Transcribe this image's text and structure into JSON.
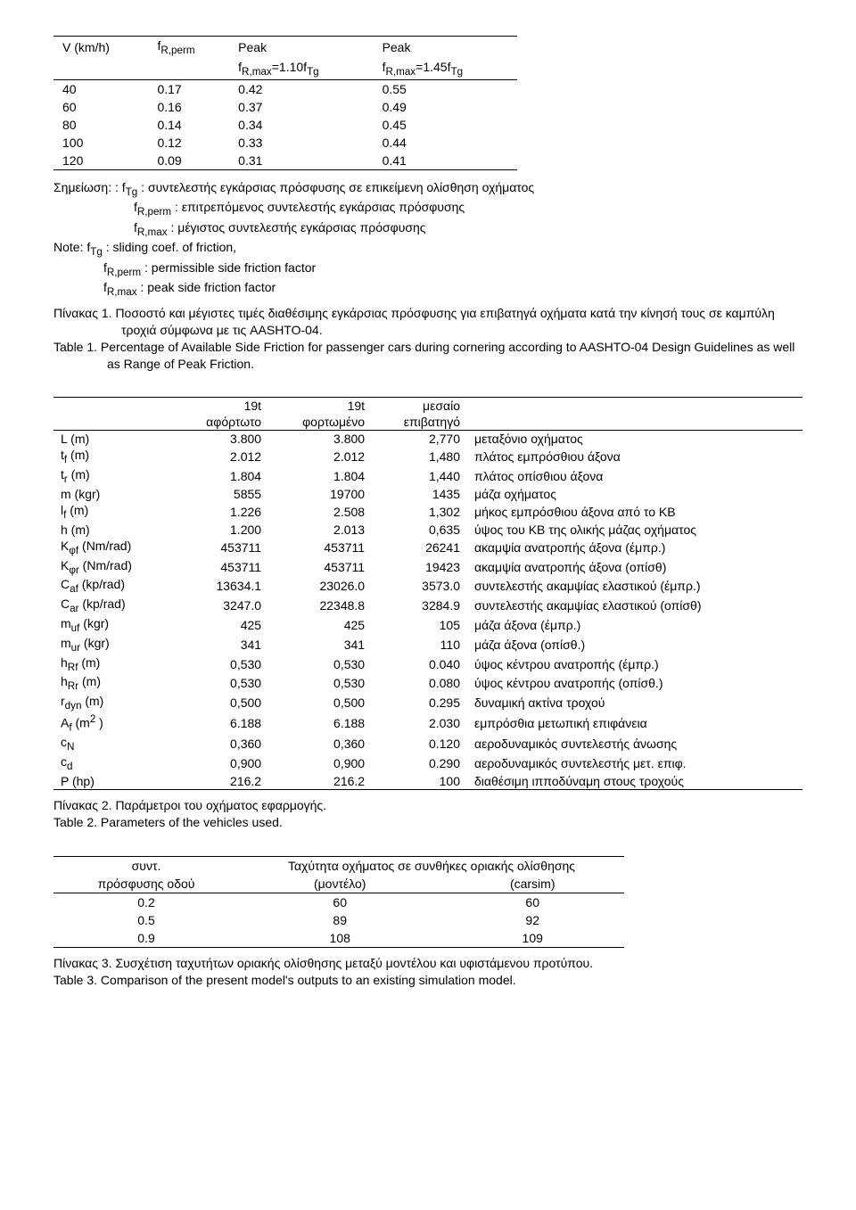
{
  "table1": {
    "headers": {
      "c0": "V (km/h)",
      "c1_html": "f<sub>R,perm</sub>",
      "c2": "Peak",
      "c2b_html": "f<sub>R,max</sub>=1.10f<sub>Tg</sub>",
      "c3": "Peak",
      "c3b_html": "f<sub>R,max</sub>=1.45f<sub>Tg</sub>"
    },
    "rows": [
      [
        "40",
        "0.17",
        "0.42",
        "0.55"
      ],
      [
        "60",
        "0.16",
        "0.37",
        "0.49"
      ],
      [
        "80",
        "0.14",
        "0.34",
        "0.45"
      ],
      [
        "100",
        "0.12",
        "0.33",
        "0.44"
      ],
      [
        "120",
        "0.09",
        "0.31",
        "0.41"
      ]
    ]
  },
  "notes": {
    "l1_html": "Σημείωση: :  f<sub>Tg</sub> : συντελεστής εγκάρσιας πρόσφυσης σε επικείμενη ολίσθηση οχήματος",
    "l2_html": "f<sub>R,perm</sub> : επιτρεπόμενος συντελεστής εγκάρσιας πρόσφυσης",
    "l3_html": "f<sub>R,max</sub> : μέγιστος  συντελεστής εγκάρσιας πρόσφυσης",
    "l4_html": "Note:   f<sub>Tg</sub> : sliding coef. of friction,",
    "l5_html": "f<sub>R,perm</sub> : permissible side friction factor",
    "l6_html": "f<sub>R,max</sub> : peak side friction factor"
  },
  "caption1": {
    "gr": "Πίνακας 1. Ποσοστό και μέγιστες τιμές διαθέσιμης εγκάρσιας πρόσφυσης για επιβατηγά οχήματα κατά την κίνησή τους σε καμπύλη τροχιά σύμφωνα με τις AASHTO-04.",
    "en": "Table 1. Percentage of Available Side Friction for passenger cars during cornering according to AASHTO-04 Design Guidelines as well as Range of Peak Friction."
  },
  "table2": {
    "head": {
      "h0": "",
      "h1a": "19t",
      "h1b": "αφόρτωτο",
      "h2a": "19t",
      "h2b": "φορτωμένο",
      "h3a": "μεσαίο",
      "h3b": "επιβατηγό",
      "h4": ""
    },
    "rows": [
      {
        "l_html": "L (m)",
        "a": "3.800",
        "b": "3.800",
        "c": "2,770",
        "d": "μεταξόνιο οχήματος"
      },
      {
        "l_html": "t<sub>f</sub> (m)",
        "a": "2.012",
        "b": "2.012",
        "c": "1,480",
        "d": "πλάτος εμπρόσθιου άξονα"
      },
      {
        "l_html": "t<sub>r</sub> (m)",
        "a": "1.804",
        "b": "1.804",
        "c": "1,440",
        "d": "πλάτος οπίσθιου άξονα"
      },
      {
        "l_html": "m (kgr)",
        "a": "5855",
        "b": "19700",
        "c": "1435",
        "d": "μάζα οχήματος"
      },
      {
        "l_html": "l<sub>f</sub> (m)",
        "a": "1.226",
        "b": "2.508",
        "c": "1,302",
        "d": "μήκος εμπρόσθιου άξονα από το ΚΒ"
      },
      {
        "l_html": "h (m)",
        "a": "1.200",
        "b": "2.013",
        "c": "0,635",
        "d": "ύψος του ΚΒ της ολικής μάζας οχήματος"
      },
      {
        "l_html": "K<sub>φf</sub> (Nm/rad)",
        "a": "453711",
        "b": "453711",
        "c": "26241",
        "d": "ακαμψία ανατροπής άξονα (έμπρ.)"
      },
      {
        "l_html": "K<sub>φr</sub> (Nm/rad)",
        "a": "453711",
        "b": "453711",
        "c": "19423",
        "d": "ακαμψία ανατροπής άξονα (οπίσθ)"
      },
      {
        "l_html": "C<sub>af</sub> (kp/rad)",
        "a": "13634.1",
        "b": "23026.0",
        "c": "3573.0",
        "d": "συντελεστής ακαμψίας ελαστικού (έμπρ.)"
      },
      {
        "l_html": "C<sub>ar</sub> (kp/rad)",
        "a": "3247.0",
        "b": "22348.8",
        "c": "3284.9",
        "d": "συντελεστής ακαμψίας ελαστικού (οπίσθ)"
      },
      {
        "l_html": "m<sub>uf</sub> (kgr)",
        "a": "425",
        "b": "425",
        "c": "105",
        "d": "μάζα άξονα (έμπρ.)"
      },
      {
        "l_html": "m<sub>ur</sub> (kgr)",
        "a": "341",
        "b": "341",
        "c": "110",
        "d": "μάζα άξονα (οπίσθ.)"
      },
      {
        "l_html": "h<sub>Rf</sub> (m)",
        "a": "0,530",
        "b": "0,530",
        "c": "0.040",
        "d": "ύψος κέντρου ανατροπής (έμπρ.)"
      },
      {
        "l_html": "h<sub>Rr</sub> (m)",
        "a": "0,530",
        "b": "0,530",
        "c": "0.080",
        "d": "ύψος κέντρου ανατροπής (οπίσθ.)"
      },
      {
        "l_html": "r<sub>dyn</sub> (m)",
        "a": "0,500",
        "b": "0,500",
        "c": "0.295",
        "d": "δυναμική ακτίνα τροχού"
      },
      {
        "l_html": "A<sub>f</sub> (m<sup>2</sup> )",
        "a": "6.188",
        "b": "6.188",
        "c": "2.030",
        "d": "εμπρόσθια μετωπική επιφάνεια"
      },
      {
        "l_html": "c<sub>N</sub>",
        "a": "0,360",
        "b": "0,360",
        "c": "0.120",
        "d": "αεροδυναμικός συντελεστής άνωσης"
      },
      {
        "l_html": "c<sub>d</sub>",
        "a": "0,900",
        "b": "0,900",
        "c": "0.290",
        "d": "αεροδυναμικός συντελεστής μετ. επιφ."
      },
      {
        "l_html": "P (hp)",
        "a": "216.2",
        "b": "216.2",
        "c": "100",
        "d": "διαθέσιμη ιπποδύναμη στους τροχούς"
      }
    ]
  },
  "caption2": {
    "gr": "Πίνακας 2. Παράμετροι του οχήματος εφαρμογής.",
    "en": "Table 2. Parameters of the vehicles used."
  },
  "table3": {
    "head": {
      "h1a": "συντ.",
      "h1b": "πρόσφυσης οδού",
      "h2": "Ταχύτητα οχήματος σε συνθήκες οριακής ολίσθησης",
      "h2a": "(μοντέλο)",
      "h2b": "(carsim)"
    },
    "rows": [
      [
        "0.2",
        "60",
        "60"
      ],
      [
        "0.5",
        "89",
        "92"
      ],
      [
        "0.9",
        "108",
        "109"
      ]
    ]
  },
  "caption3": {
    "gr": "Πίνακας 3. Συσχέτιση ταχυτήτων οριακής ολίσθησης μεταξύ μοντέλου και υφιστάμενου προτύπου.",
    "en": "Table 3. Comparison of the present model's outputs to an existing simulation model."
  }
}
